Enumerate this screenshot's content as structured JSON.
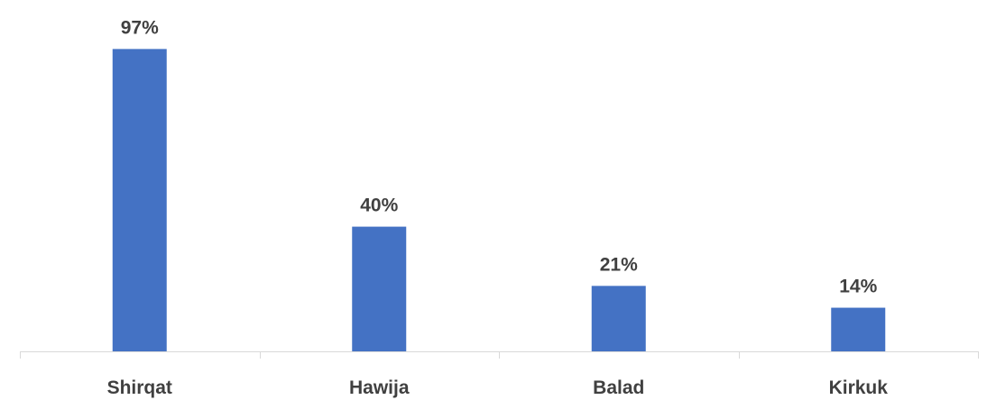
{
  "chart_data": {
    "type": "bar",
    "categories": [
      "Shirqat",
      "Hawija",
      "Balad",
      "Kirkuk"
    ],
    "values": [
      97,
      40,
      21,
      14
    ],
    "data_labels": [
      "97%",
      "40%",
      "21%",
      "14%"
    ],
    "unit": "%",
    "ylim": [
      0,
      100
    ],
    "title": "",
    "xlabel": "",
    "ylabel": "",
    "grid": false,
    "legend": "none",
    "bar_color": "#4472C4",
    "axis_color": "#D9D9D9",
    "label_color": "#404040"
  }
}
